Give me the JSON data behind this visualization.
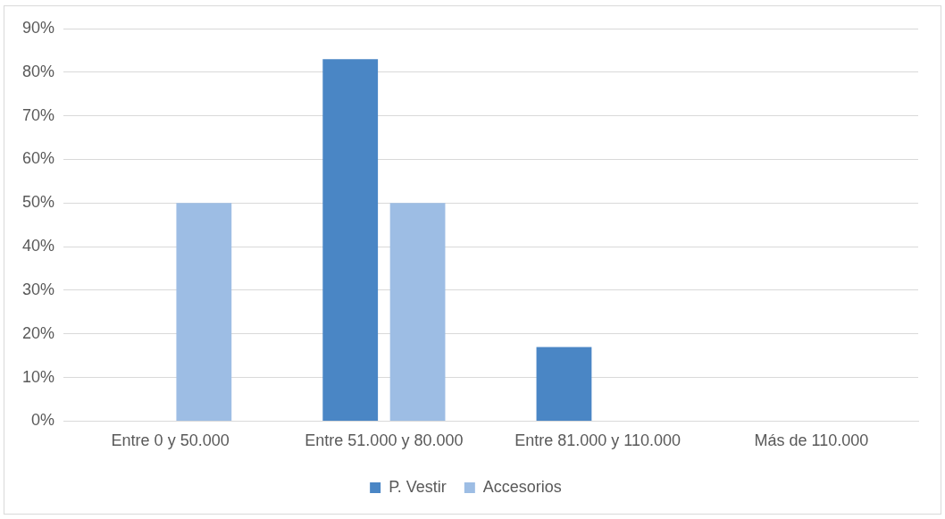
{
  "chart_data": {
    "type": "bar",
    "categories": [
      "Entre 0 y 50.000",
      "Entre 51.000 y 80.000",
      "Entre 81.000 y 110.000",
      "Más de 110.000"
    ],
    "series": [
      {
        "name": "P. Vestir",
        "color": "#4a86c5",
        "values": [
          0,
          83,
          17,
          0
        ]
      },
      {
        "name": "Accesorios",
        "color": "#9dbde4",
        "values": [
          50,
          50,
          0,
          0
        ]
      }
    ],
    "ylim": [
      0,
      90
    ],
    "yticks": [
      {
        "value": 0,
        "label": "0%"
      },
      {
        "value": 10,
        "label": "10%"
      },
      {
        "value": 20,
        "label": "20%"
      },
      {
        "value": 30,
        "label": "30%"
      },
      {
        "value": 40,
        "label": "40%"
      },
      {
        "value": 50,
        "label": "50%"
      },
      {
        "value": 60,
        "label": "60%"
      },
      {
        "value": 70,
        "label": "70%"
      },
      {
        "value": 80,
        "label": "80%"
      },
      {
        "value": 90,
        "label": "90%"
      }
    ],
    "grid": "y",
    "legend": "bottom"
  }
}
